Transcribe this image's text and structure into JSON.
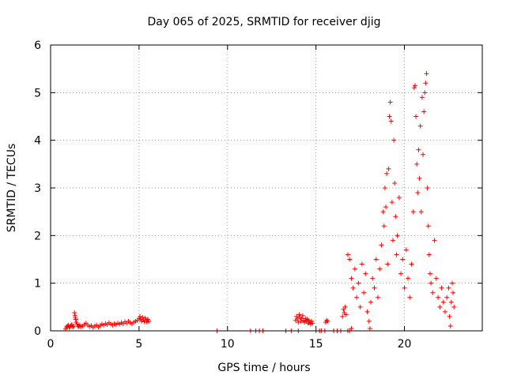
{
  "chart_data": {
    "type": "scatter",
    "title": "Day 065 of 2025, SRMTID for receiver djig",
    "xlabel": "GPS time / hours",
    "ylabel": "SRMTID / TECUs",
    "xlim": [
      0,
      24.4
    ],
    "ylim": [
      0,
      6
    ],
    "xticks": [
      0,
      5,
      10,
      15,
      20
    ],
    "yticks": [
      0,
      1,
      2,
      3,
      4,
      5,
      6
    ],
    "xtick_labels": [
      "0",
      "5",
      "10",
      "15",
      "20"
    ],
    "ytick_labels": [
      "0",
      "1",
      "2",
      "3",
      "4",
      "5",
      "6"
    ],
    "grid": true,
    "marker": "+",
    "color": "#ff0000",
    "series": [
      {
        "name": "SRMTID",
        "points": [
          [
            0.85,
            0.04
          ],
          [
            0.9,
            0.08
          ],
          [
            0.95,
            0.1
          ],
          [
            1.0,
            0.12
          ],
          [
            1.05,
            0.07
          ],
          [
            1.1,
            0.09
          ],
          [
            1.15,
            0.11
          ],
          [
            1.2,
            0.13
          ],
          [
            1.25,
            0.08
          ],
          [
            1.3,
            0.1
          ],
          [
            1.35,
            0.38
          ],
          [
            1.38,
            0.32
          ],
          [
            1.4,
            0.28
          ],
          [
            1.42,
            0.24
          ],
          [
            1.45,
            0.18
          ],
          [
            1.5,
            0.14
          ],
          [
            1.55,
            0.1
          ],
          [
            1.6,
            0.09
          ],
          [
            1.65,
            0.12
          ],
          [
            1.7,
            0.08
          ],
          [
            1.8,
            0.1
          ],
          [
            1.9,
            0.13
          ],
          [
            2.0,
            0.16
          ],
          [
            2.1,
            0.12
          ],
          [
            2.2,
            0.09
          ],
          [
            2.3,
            0.11
          ],
          [
            2.4,
            0.07
          ],
          [
            2.5,
            0.1
          ],
          [
            2.6,
            0.12
          ],
          [
            2.7,
            0.08
          ],
          [
            2.8,
            0.11
          ],
          [
            2.9,
            0.14
          ],
          [
            3.0,
            0.12
          ],
          [
            3.1,
            0.15
          ],
          [
            3.2,
            0.13
          ],
          [
            3.3,
            0.17
          ],
          [
            3.4,
            0.14
          ],
          [
            3.5,
            0.12
          ],
          [
            3.6,
            0.15
          ],
          [
            3.7,
            0.13
          ],
          [
            3.8,
            0.16
          ],
          [
            3.9,
            0.14
          ],
          [
            4.0,
            0.17
          ],
          [
            4.1,
            0.15
          ],
          [
            4.2,
            0.19
          ],
          [
            4.3,
            0.16
          ],
          [
            4.4,
            0.2
          ],
          [
            4.5,
            0.17
          ],
          [
            4.6,
            0.15
          ],
          [
            4.7,
            0.18
          ],
          [
            4.8,
            0.2
          ],
          [
            4.9,
            0.22
          ],
          [
            5.0,
            0.26
          ],
          [
            5.05,
            0.3
          ],
          [
            5.1,
            0.24
          ],
          [
            5.15,
            0.2
          ],
          [
            5.2,
            0.28
          ],
          [
            5.25,
            0.23
          ],
          [
            5.3,
            0.19
          ],
          [
            5.35,
            0.27
          ],
          [
            5.4,
            0.22
          ],
          [
            5.45,
            0.18
          ],
          [
            5.5,
            0.24
          ],
          [
            5.55,
            0.2
          ],
          [
            9.4,
            0.0
          ],
          [
            11.3,
            0.0
          ],
          [
            11.6,
            0.0
          ],
          [
            11.8,
            0.0
          ],
          [
            12.0,
            0.0
          ],
          [
            13.3,
            0.0
          ],
          [
            13.6,
            0.0
          ],
          [
            13.85,
            0.22
          ],
          [
            13.9,
            0.3
          ],
          [
            13.95,
            0.25
          ],
          [
            14.0,
            0.18
          ],
          [
            14.05,
            0.34
          ],
          [
            14.1,
            0.28
          ],
          [
            14.15,
            0.2
          ],
          [
            14.2,
            0.26
          ],
          [
            14.25,
            0.32
          ],
          [
            14.3,
            0.22
          ],
          [
            14.35,
            0.18
          ],
          [
            14.4,
            0.26
          ],
          [
            14.45,
            0.2
          ],
          [
            14.5,
            0.24
          ],
          [
            14.55,
            0.16
          ],
          [
            14.6,
            0.22
          ],
          [
            14.65,
            0.18
          ],
          [
            14.7,
            0.14
          ],
          [
            14.75,
            0.2
          ],
          [
            14.8,
            0.16
          ],
          [
            14.0,
            0.0
          ],
          [
            15.0,
            0.0
          ],
          [
            15.2,
            0.0
          ],
          [
            15.3,
            0.0
          ],
          [
            15.5,
            0.0
          ],
          [
            15.55,
            0.18
          ],
          [
            15.6,
            0.22
          ],
          [
            15.65,
            0.2
          ],
          [
            16.0,
            0.0
          ],
          [
            16.2,
            0.0
          ],
          [
            16.4,
            0.0
          ],
          [
            16.5,
            0.3
          ],
          [
            16.55,
            0.45
          ],
          [
            16.6,
            0.38
          ],
          [
            16.65,
            0.5
          ],
          [
            16.7,
            0.34
          ],
          [
            16.8,
            0.0
          ],
          [
            16.9,
            0.0
          ],
          [
            17.0,
            0.05
          ],
          [
            16.8,
            1.6
          ],
          [
            16.9,
            1.5
          ],
          [
            17.0,
            1.1
          ],
          [
            17.1,
            0.9
          ],
          [
            17.2,
            1.3
          ],
          [
            17.3,
            0.7
          ],
          [
            17.4,
            1.0
          ],
          [
            17.5,
            0.5
          ],
          [
            17.6,
            1.4
          ],
          [
            17.7,
            0.8
          ],
          [
            17.8,
            1.2
          ],
          [
            17.9,
            0.4
          ],
          [
            18.0,
            0.2
          ],
          [
            18.05,
            0.05
          ],
          [
            18.1,
            0.6
          ],
          [
            18.2,
            1.1
          ],
          [
            18.3,
            0.9
          ],
          [
            18.4,
            1.5
          ],
          [
            18.5,
            0.7
          ],
          [
            18.6,
            1.3
          ],
          [
            18.7,
            1.8
          ],
          [
            18.8,
            2.5
          ],
          [
            18.85,
            2.2
          ],
          [
            18.9,
            3.0
          ],
          [
            18.95,
            2.6
          ],
          [
            19.0,
            3.3
          ],
          [
            19.05,
            1.4
          ],
          [
            19.1,
            3.4
          ],
          [
            19.15,
            4.5
          ],
          [
            19.2,
            4.8
          ],
          [
            19.25,
            4.4
          ],
          [
            19.3,
            2.7
          ],
          [
            19.35,
            1.9
          ],
          [
            19.4,
            4.0
          ],
          [
            19.45,
            3.1
          ],
          [
            19.5,
            2.4
          ],
          [
            19.55,
            1.6
          ],
          [
            19.6,
            2.0
          ],
          [
            19.7,
            2.8
          ],
          [
            19.8,
            1.2
          ],
          [
            19.9,
            1.5
          ],
          [
            20.0,
            0.9
          ],
          [
            20.1,
            1.7
          ],
          [
            20.2,
            1.1
          ],
          [
            20.3,
            0.7
          ],
          [
            20.4,
            1.4
          ],
          [
            20.5,
            2.5
          ],
          [
            20.55,
            5.1
          ],
          [
            20.6,
            5.15
          ],
          [
            20.65,
            4.5
          ],
          [
            20.7,
            3.5
          ],
          [
            20.75,
            2.9
          ],
          [
            20.8,
            3.8
          ],
          [
            20.85,
            3.2
          ],
          [
            20.9,
            4.3
          ],
          [
            20.95,
            2.5
          ],
          [
            21.0,
            4.9
          ],
          [
            21.05,
            3.7
          ],
          [
            21.1,
            4.6
          ],
          [
            21.15,
            5.0
          ],
          [
            21.2,
            5.2
          ],
          [
            21.25,
            5.4
          ],
          [
            21.3,
            3.0
          ],
          [
            21.35,
            2.2
          ],
          [
            21.4,
            1.6
          ],
          [
            21.45,
            1.2
          ],
          [
            21.5,
            1.0
          ],
          [
            21.6,
            0.8
          ],
          [
            21.7,
            1.9
          ],
          [
            21.8,
            1.1
          ],
          [
            21.9,
            0.7
          ],
          [
            22.0,
            0.5
          ],
          [
            22.1,
            0.9
          ],
          [
            22.2,
            0.6
          ],
          [
            22.3,
            0.4
          ],
          [
            22.4,
            0.7
          ],
          [
            22.5,
            0.9
          ],
          [
            22.55,
            0.3
          ],
          [
            22.6,
            0.1
          ],
          [
            22.65,
            0.6
          ],
          [
            22.7,
            1.0
          ],
          [
            22.75,
            0.8
          ],
          [
            22.8,
            0.5
          ]
        ]
      }
    ]
  }
}
